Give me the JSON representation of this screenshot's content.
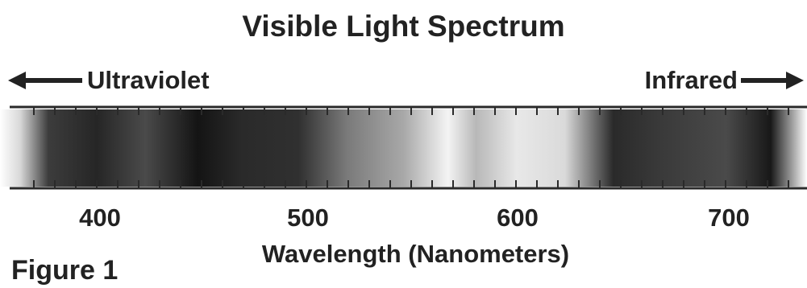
{
  "title": "Visible Light Spectrum",
  "direction_labels": {
    "left": "Ultraviolet",
    "right": "Infrared"
  },
  "wavelength_ticks": [
    {
      "value": "400"
    },
    {
      "value": "500"
    },
    {
      "value": "600"
    },
    {
      "value": "700"
    }
  ],
  "axis_title": "Wavelength (Nanometers)",
  "figure_caption": "Figure 1",
  "colors": {
    "text": "#222222",
    "line": "#2a2a2a",
    "band_dark": "#141414",
    "band_light": "#f4f4f4"
  }
}
